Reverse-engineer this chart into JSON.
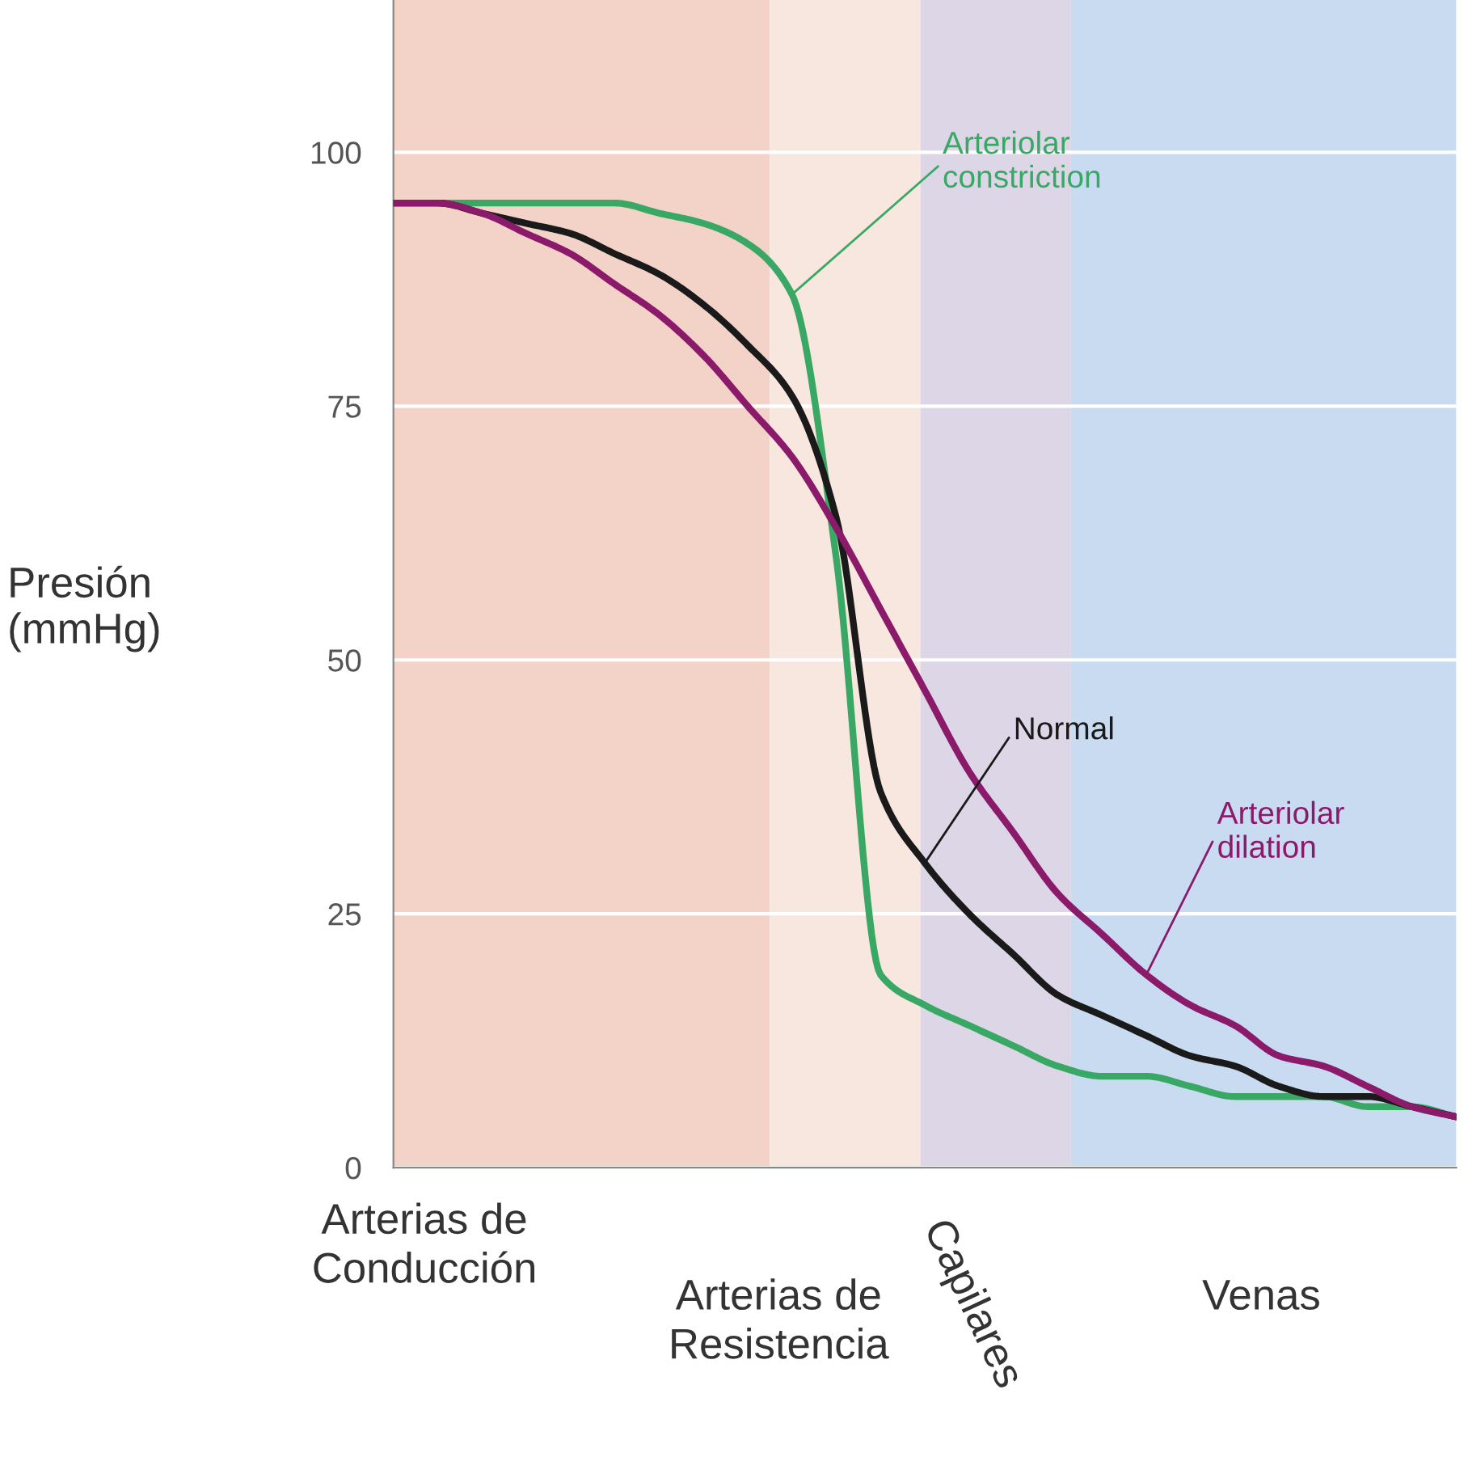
{
  "chart_data": {
    "type": "line",
    "ylabel": "Presión\n(mmHg)",
    "categories": [
      null,
      null,
      null,
      null,
      null,
      null,
      null,
      null,
      null,
      null,
      null,
      null,
      null,
      null,
      null,
      null,
      null,
      null,
      null,
      null,
      null,
      null,
      null,
      null,
      null
    ],
    "series": [
      {
        "name": "Arteriolar\nconstriction",
        "color": "#3aa865",
        "values": [
          95,
          95,
          95,
          95,
          95,
          95,
          94,
          93,
          91,
          86,
          60,
          19,
          16,
          14,
          12,
          10,
          9,
          9,
          8,
          7,
          7,
          7,
          6,
          6,
          5
        ]
      },
      {
        "name": "Normal",
        "color": "#1a1a1a",
        "values": [
          95,
          95,
          94,
          93,
          92,
          90,
          88,
          85,
          81,
          76,
          64,
          37,
          30,
          25,
          21,
          17,
          15,
          13,
          11,
          10,
          8,
          7,
          7,
          6,
          5
        ]
      },
      {
        "name": "Arteriolar\ndilation",
        "color": "#8b1a6b",
        "values": [
          95,
          95,
          94,
          92,
          90,
          87,
          84,
          80,
          75,
          70,
          63,
          55,
          47,
          39,
          33,
          27,
          23,
          19,
          16,
          14,
          11,
          10,
          8,
          6,
          5
        ]
      }
    ],
    "ylim": [
      0,
      115
    ],
    "yticks": [
      0,
      25,
      50,
      75,
      100
    ],
    "annotations": [
      "Arterias de\nConducción",
      "Arterias de\nResistencia",
      "Capilares",
      "Venas"
    ],
    "grid": "y",
    "legend": false,
    "marker": "none",
    "line_style": "solid"
  }
}
